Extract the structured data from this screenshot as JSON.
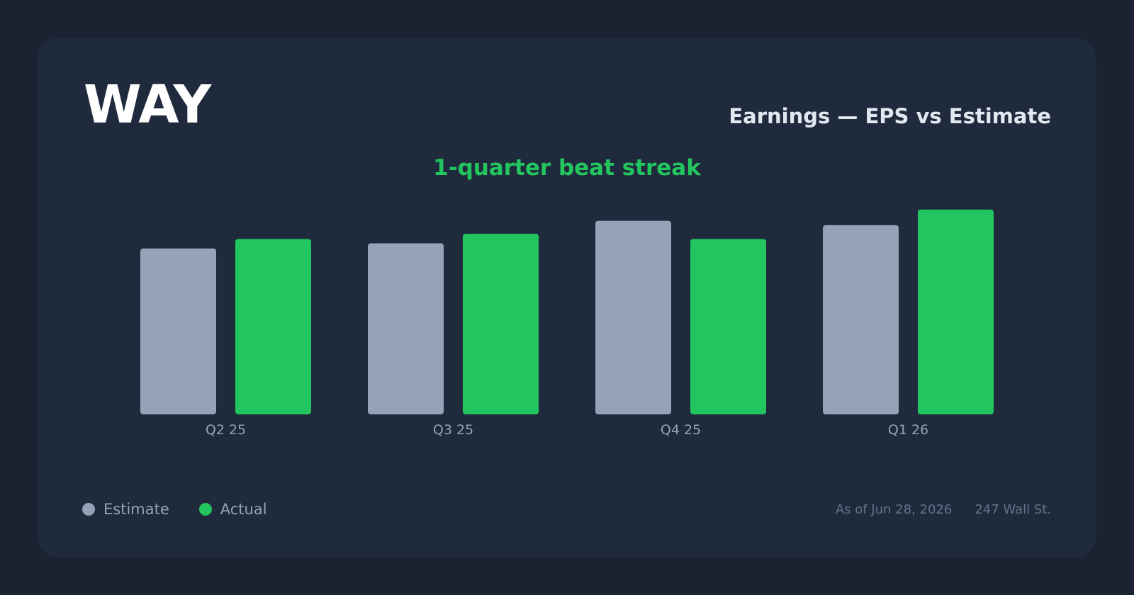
{
  "ticker": "WAY",
  "title": "Earnings — EPS vs Estimate",
  "streak": "1-quarter beat streak",
  "legend": {
    "estimate": "Estimate",
    "actual": "Actual"
  },
  "footer": {
    "asof": "As of Jun 28, 2026",
    "source": "247 Wall St."
  },
  "colors": {
    "estimate": "#94a3b8",
    "actual": "#22c55e",
    "card": "#1f2a3c",
    "background": "#1b2332"
  },
  "chart_data": {
    "type": "bar",
    "categories": [
      "Q2 25",
      "Q3 25",
      "Q4 25",
      "Q1 26"
    ],
    "series": [
      {
        "name": "Estimate",
        "values": [
          0.192,
          0.198,
          0.224,
          0.219
        ]
      },
      {
        "name": "Actual",
        "values": [
          0.203,
          0.209,
          0.203,
          0.237
        ]
      }
    ],
    "ylim": [
      0,
      0.25
    ],
    "grid": false,
    "legend_position": "bottom-left"
  }
}
